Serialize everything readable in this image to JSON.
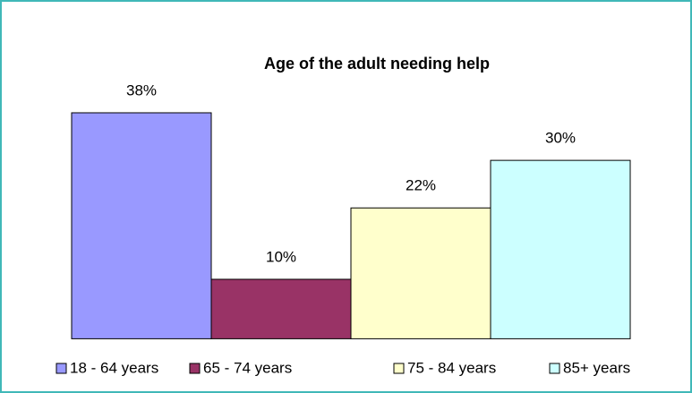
{
  "chart_data": {
    "type": "bar",
    "title": "Age of the adult needing help",
    "categories": [
      "18 - 64 years",
      "65 - 74 years",
      "75 - 84 years",
      "85+ years"
    ],
    "values": [
      38,
      10,
      22,
      30
    ],
    "value_labels": [
      "38%",
      "10%",
      "22%",
      "30%"
    ],
    "colors": [
      "#9999ff",
      "#993366",
      "#ffffcc",
      "#ccffff"
    ],
    "ylim": [
      0,
      40
    ],
    "legend": "bottom"
  }
}
